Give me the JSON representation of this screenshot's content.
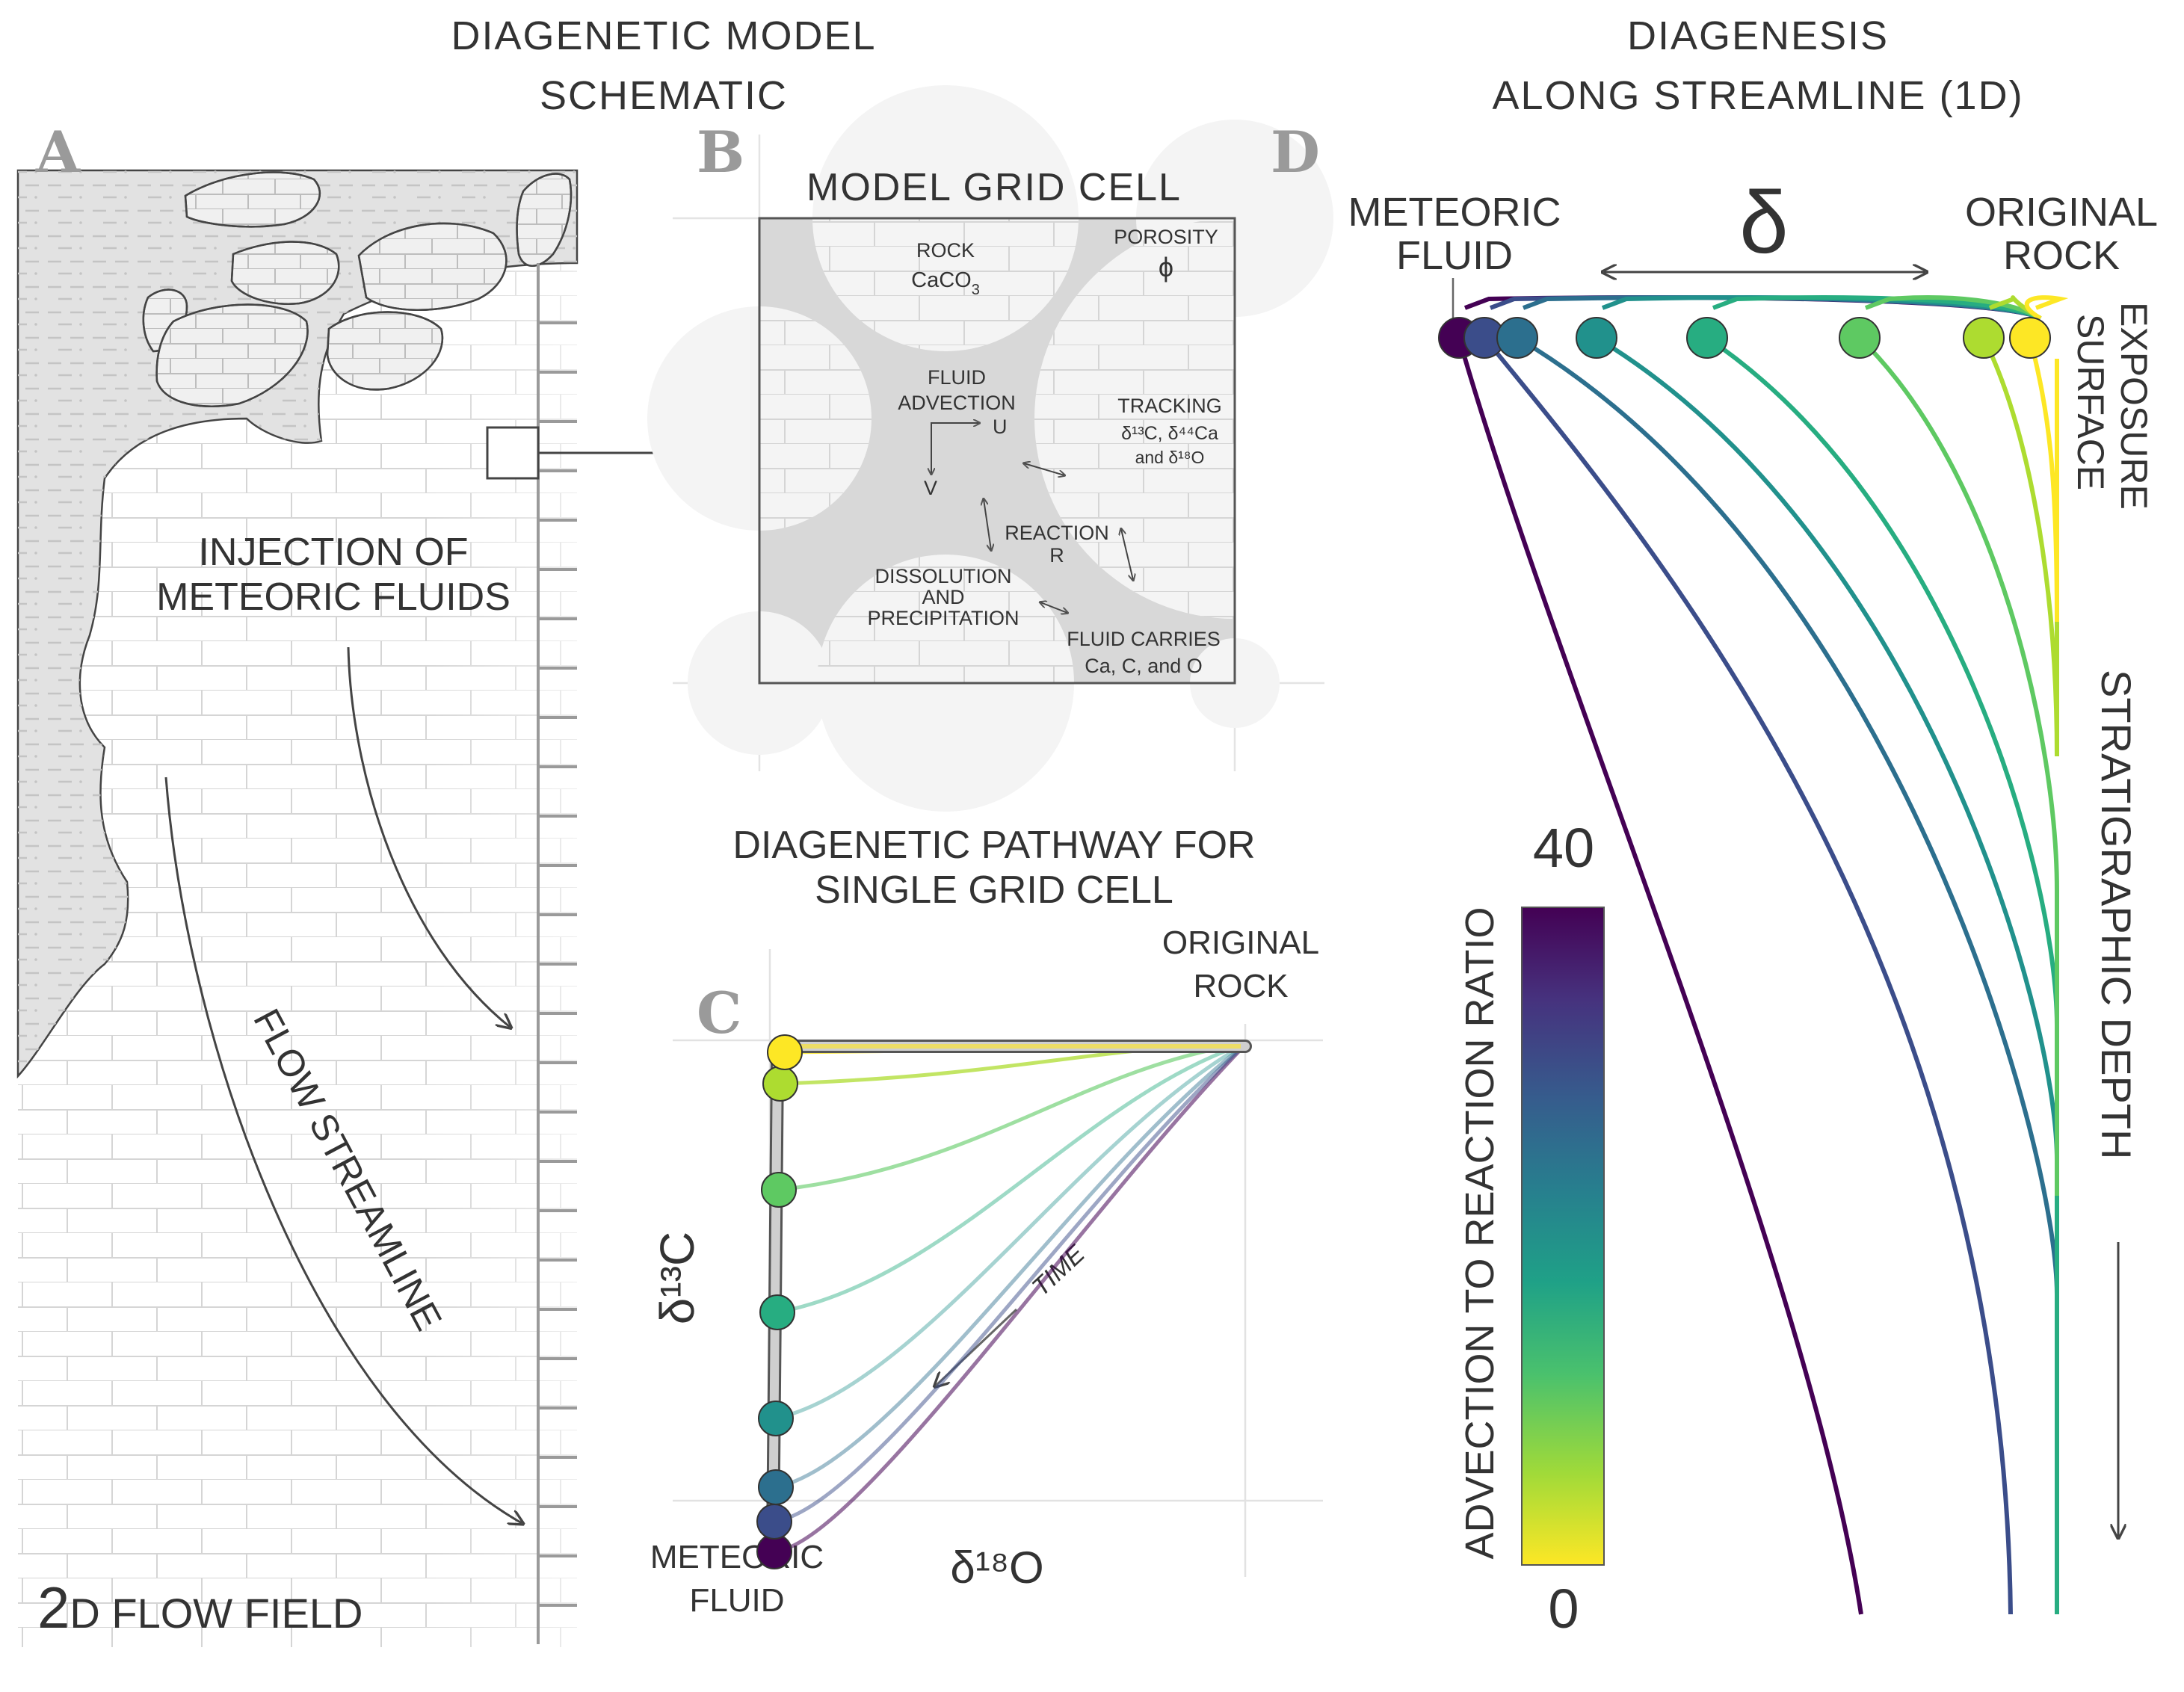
{
  "titles": {
    "left_line1": "DIAGENETIC MODEL",
    "left_line2": "SCHEMATIC",
    "right_line1": "DIAGENESIS",
    "right_line2": "ALONG STREAMLINE (1D)"
  },
  "panel_a": {
    "letter": "A",
    "injection_line1": "INJECTION OF",
    "injection_line2": "METEORIC FLUIDS",
    "flow_streamline": "FLOW STREAMLINE",
    "flow_field_num": "2",
    "flow_field_text": "D FLOW FIELD"
  },
  "panel_b": {
    "letter": "B",
    "title": "MODEL GRID CELL",
    "rock_line1": "ROCK",
    "rock_formula": "CaCO",
    "rock_sub": "3",
    "porosity_label": "POROSITY",
    "porosity_symbol": "ϕ",
    "fluid_line1": "FLUID",
    "fluid_line2": "ADVECTION",
    "u_label": "U",
    "v_label": "V",
    "tracking_line1": "TRACKING",
    "tracking_line2": "δ¹³C, δ⁴⁴Ca",
    "tracking_line3": "and δ¹⁸O",
    "reaction_line1": "REACTION",
    "reaction_line2": "R",
    "dissolution_line1": "DISSOLUTION",
    "dissolution_line2": "AND",
    "dissolution_line3": "PRECIPITATION",
    "carries_line1": "FLUID CARRIES",
    "carries_line2": "Ca, C, and O"
  },
  "panel_c": {
    "letter": "C",
    "title_line1": "DIAGENETIC PATHWAY FOR",
    "title_line2": "SINGLE GRID CELL",
    "original_line1": "ORIGINAL",
    "original_line2": "ROCK",
    "meteoric_line1": "METEORIC",
    "meteoric_line2": "FLUID",
    "y_axis": "δ¹³C",
    "x_axis": "δ¹⁸O",
    "time_label": "TIME"
  },
  "panel_d": {
    "letter": "D",
    "meteoric_line1": "METEORIC",
    "meteoric_line2": "FLUID",
    "delta_symbol": "δ",
    "original_line1": "ORIGINAL",
    "original_line2": "ROCK",
    "exposure_line1": "EXPOSURE",
    "exposure_line2": "SURFACE",
    "depth_label": "STRATIGRAPHIC DEPTH",
    "colorbar_title": "ADVECTION TO REACTION RATIO",
    "colorbar_max": "40",
    "colorbar_min": "0",
    "colorbar_range": [
      0,
      40
    ],
    "colormap": "viridis",
    "curve_colors": [
      "#440154",
      "#3b4d8a",
      "#2c6f8e",
      "#21918c",
      "#27ad81",
      "#5ec962",
      "#addc30",
      "#fde725"
    ]
  },
  "colors": {
    "text": "#333333",
    "grid_cell_fill": "#d8d8d8",
    "grain_fill": "#f4f4f4",
    "limestone_shade": "#e6e6e6"
  }
}
